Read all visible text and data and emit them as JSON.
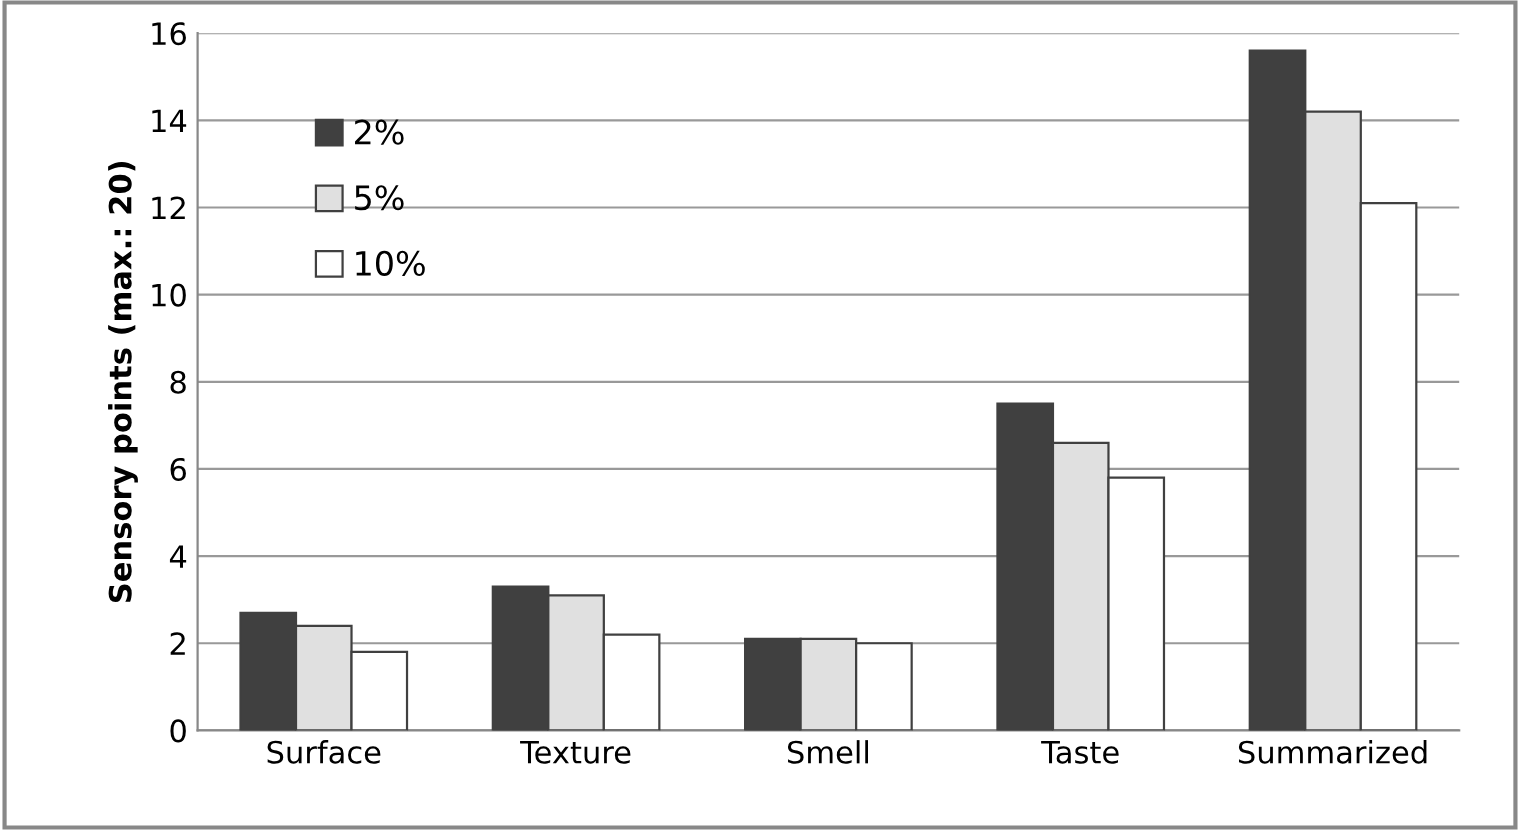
{
  "chart_data": {
    "type": "bar",
    "ylabel": "Sensory points (max.: 20)",
    "categories": [
      "Surface",
      "Texture",
      "Smell",
      "Taste",
      "Summarized"
    ],
    "series": [
      {
        "name": "2%",
        "color": "#404040",
        "values": [
          2.7,
          3.3,
          2.1,
          7.5,
          15.6
        ]
      },
      {
        "name": "5%",
        "color": "#e0e0e0",
        "values": [
          2.4,
          3.1,
          2.1,
          6.6,
          14.2
        ]
      },
      {
        "name": "10%",
        "color": "#ffffff",
        "values": [
          1.8,
          2.2,
          2.0,
          5.8,
          12.1
        ]
      }
    ],
    "ylim": [
      0,
      16
    ],
    "yticks": [
      0,
      2,
      4,
      6,
      8,
      10,
      12,
      14,
      16
    ],
    "grid": "y",
    "legend": "top left"
  }
}
